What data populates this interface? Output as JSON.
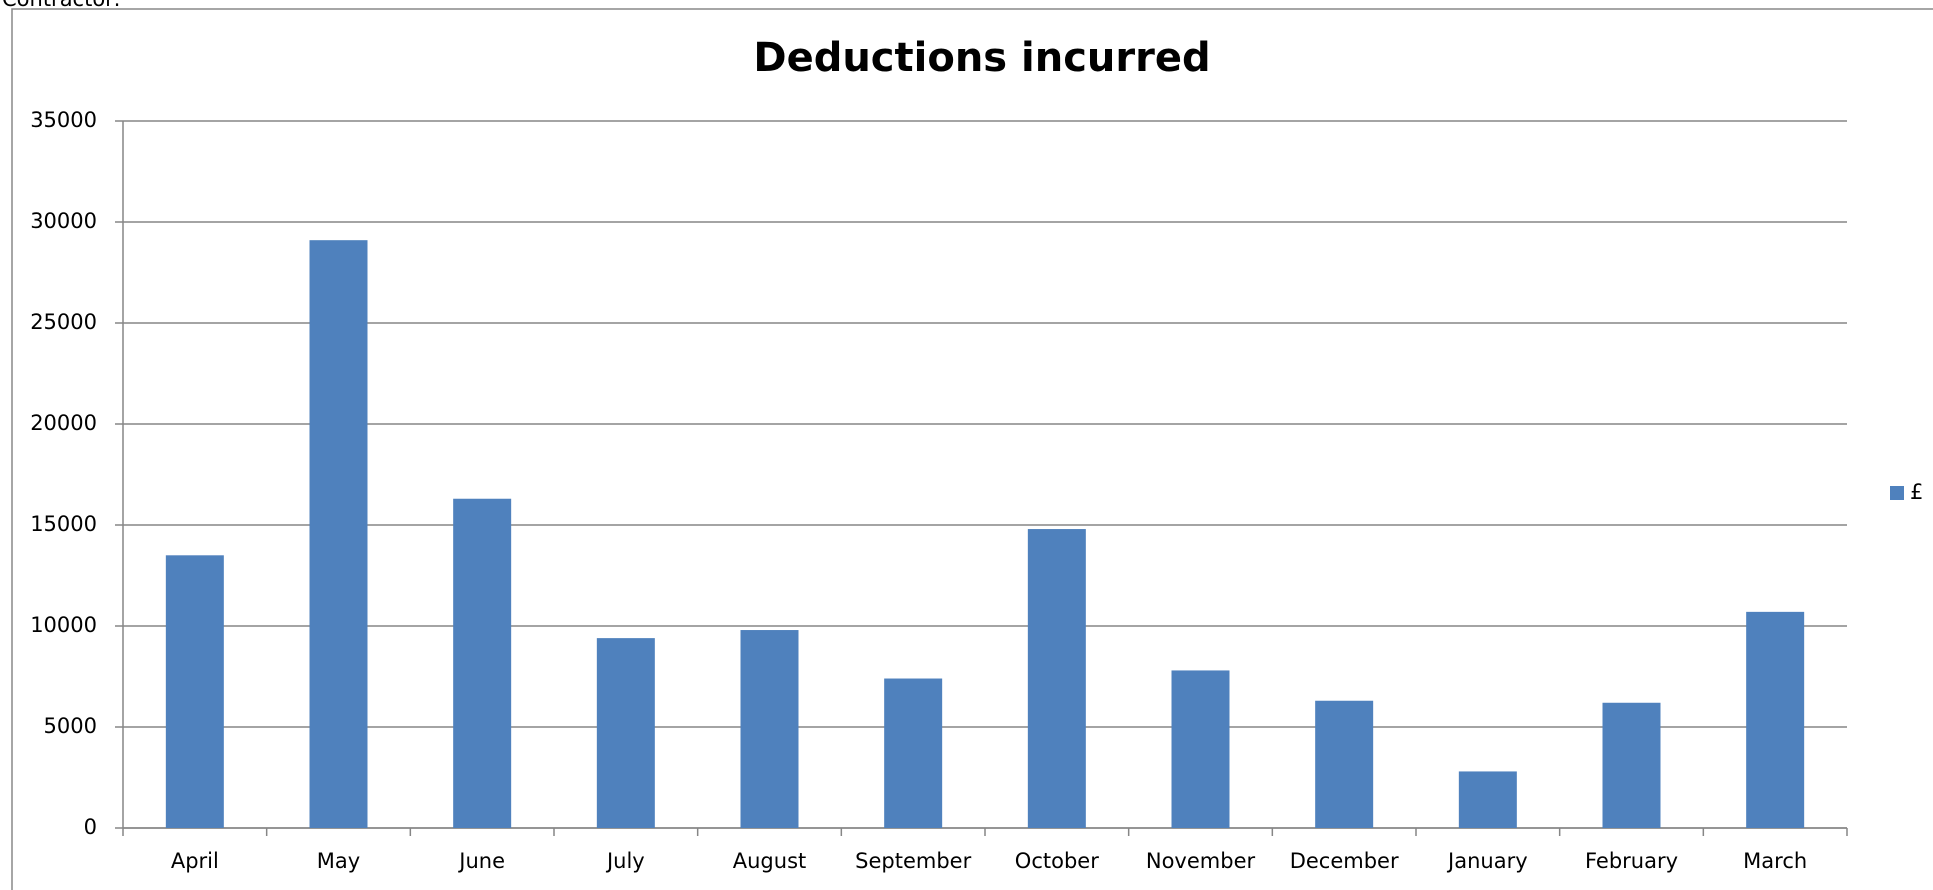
{
  "caption": "Contractor:",
  "chart_data": {
    "type": "bar",
    "title": "Deductions incurred",
    "categories": [
      "April",
      "May",
      "June",
      "July",
      "August",
      "September",
      "October",
      "November",
      "December",
      "January",
      "February",
      "March"
    ],
    "series": [
      {
        "name": "£",
        "color": "#4f81bd",
        "values": [
          13500,
          29100,
          16300,
          9400,
          9800,
          7400,
          14800,
          7800,
          6300,
          2800,
          6200,
          10700
        ]
      }
    ],
    "ylim": [
      0,
      35000
    ],
    "yticks": [
      0,
      5000,
      10000,
      15000,
      20000,
      25000,
      30000,
      35000
    ],
    "grid": true,
    "legend": "right"
  }
}
